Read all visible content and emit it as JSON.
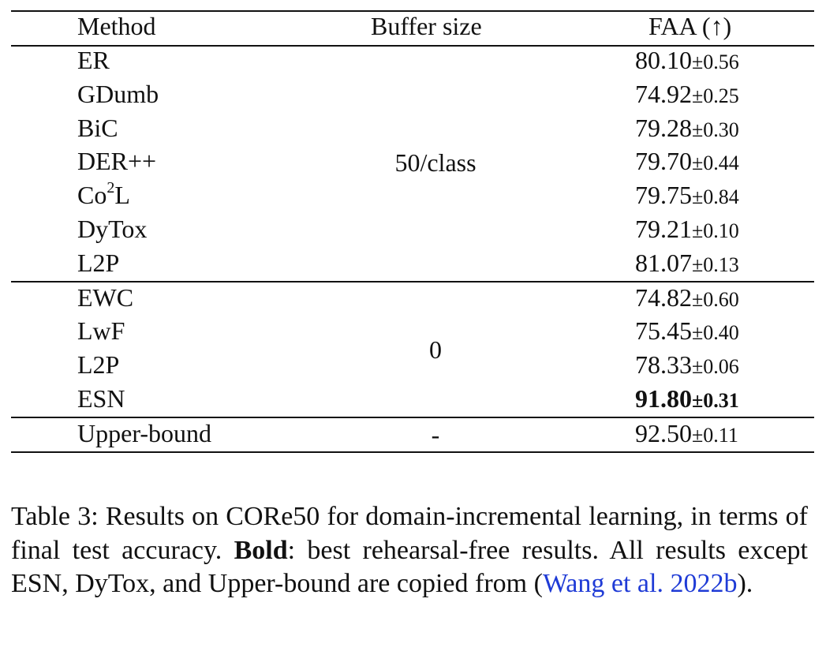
{
  "table": {
    "headers": [
      "Method",
      "Buffer size",
      "FAA (↑)"
    ],
    "groups": [
      {
        "buffer": "50/class",
        "rows": [
          {
            "method": "ER",
            "mean": "80.10",
            "std": "0.56"
          },
          {
            "method": "GDumb",
            "mean": "74.92",
            "std": "0.25"
          },
          {
            "method": "BiC",
            "mean": "79.28",
            "std": "0.30"
          },
          {
            "method": "DER++",
            "mean": "79.70",
            "std": "0.44"
          },
          {
            "method": "Co",
            "method_sup": "2",
            "method_tail": "L",
            "mean": "79.75",
            "std": "0.84"
          },
          {
            "method": "DyTox",
            "mean": "79.21",
            "std": "0.10"
          },
          {
            "method": "L2P",
            "mean": "81.07",
            "std": "0.13"
          }
        ]
      },
      {
        "buffer": "0",
        "rows": [
          {
            "method": "EWC",
            "mean": "74.82",
            "std": "0.60"
          },
          {
            "method": "LwF",
            "mean": "75.45",
            "std": "0.40"
          },
          {
            "method": "L2P",
            "mean": "78.33",
            "std": "0.06"
          },
          {
            "method": "ESN",
            "mean": "91.80",
            "std": "0.31",
            "bold": true
          }
        ]
      },
      {
        "buffer": "-",
        "rows": [
          {
            "method": "Upper-bound",
            "mean": "92.50",
            "std": "0.11"
          }
        ]
      }
    ],
    "pm_symbol": "±"
  },
  "caption": {
    "part1": "Table 3: Results on CORe50 for domain-incremental learning, in terms of final test accuracy. ",
    "bold": "Bold",
    "part2": ": best rehearsal-free results. All results except ESN, DyTox, and Upper-bound are copied from (",
    "cite": "Wang et al. 2022b",
    "part3": ")."
  }
}
